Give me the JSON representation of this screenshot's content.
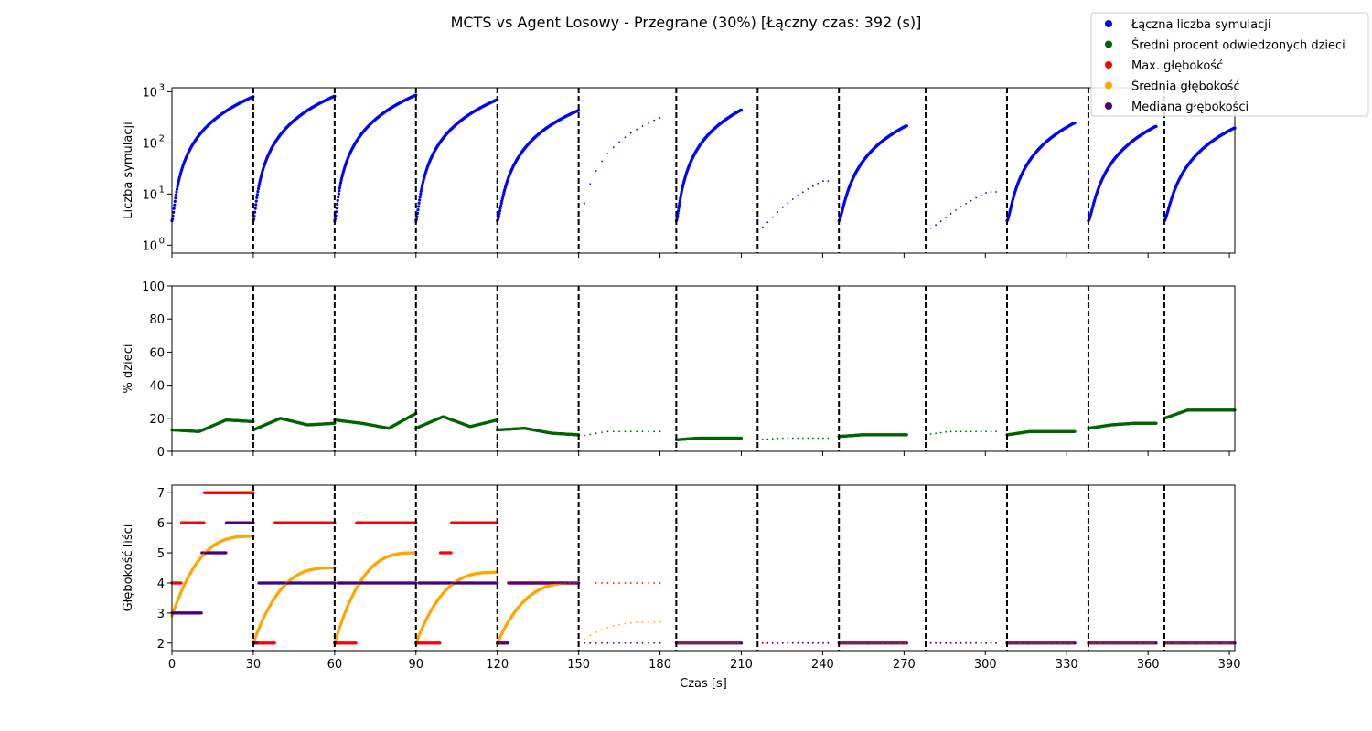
{
  "chart_data": {
    "type": "scatter",
    "title": "MCTS vs Agent Losowy - Przegrane (30%) [Łączny czas: 392 (s)]",
    "xlabel": "Czas [s]",
    "xlim": [
      0,
      392
    ],
    "xticks": [
      0,
      30,
      60,
      90,
      120,
      150,
      180,
      210,
      240,
      270,
      300,
      330,
      360,
      390
    ],
    "xticklabels": [
      "0",
      "30",
      "60",
      "90",
      "120",
      "150",
      "180",
      "210",
      "240",
      "270",
      "300",
      "330",
      "360",
      "390"
    ],
    "move_boundaries": [
      30,
      60,
      90,
      120,
      150,
      186,
      216,
      246,
      278,
      308,
      338,
      366
    ],
    "segments": [
      {
        "start": 0,
        "end": 30,
        "dense": true,
        "sim_end": 800,
        "child_pct": [
          13,
          12,
          19,
          18
        ],
        "max_depth_steps": [
          [
            0,
            4
          ],
          [
            3.5,
            6
          ],
          [
            12,
            7
          ]
        ],
        "avg_depth": [
          2.9,
          5.55
        ],
        "median_depth_steps": [
          [
            0,
            3
          ],
          [
            11,
            5
          ],
          [
            20,
            6
          ]
        ]
      },
      {
        "start": 30,
        "end": 60,
        "dense": true,
        "sim_end": 820,
        "child_pct": [
          13,
          20,
          16,
          17
        ],
        "max_depth_steps": [
          [
            30,
            2
          ],
          [
            38,
            6
          ]
        ],
        "avg_depth": [
          2.0,
          4.5
        ],
        "median_depth_steps": [
          [
            30,
            2
          ],
          [
            32,
            4
          ]
        ]
      },
      {
        "start": 60,
        "end": 90,
        "dense": true,
        "sim_end": 860,
        "child_pct": [
          19,
          17,
          14,
          23
        ],
        "max_depth_steps": [
          [
            60,
            2
          ],
          [
            68,
            6
          ]
        ],
        "avg_depth": [
          2.0,
          5.0
        ],
        "median_depth_steps": [
          [
            60,
            2
          ],
          [
            61,
            4
          ]
        ]
      },
      {
        "start": 90,
        "end": 120,
        "dense": true,
        "sim_end": 700,
        "child_pct": [
          14,
          21,
          15,
          19
        ],
        "max_depth_steps": [
          [
            90,
            2
          ],
          [
            99,
            5
          ],
          [
            103,
            6
          ]
        ],
        "avg_depth": [
          2.0,
          4.35
        ],
        "median_depth_steps": [
          [
            90,
            2
          ],
          [
            91,
            4
          ]
        ]
      },
      {
        "start": 120,
        "end": 150,
        "dense": true,
        "sim_end": 430,
        "child_pct": [
          13,
          14,
          11,
          10
        ],
        "max_depth_steps": [
          [
            120,
            2
          ],
          [
            124,
            4
          ]
        ],
        "avg_depth": [
          2.0,
          4.0
        ],
        "median_depth_steps": [
          [
            120,
            2
          ],
          [
            124,
            4
          ]
        ]
      },
      {
        "start": 150,
        "end": 180,
        "dense": false,
        "sim_end": 310,
        "child_pct": [
          9,
          12,
          12,
          12
        ],
        "max_depth_steps": [
          [
            150,
            2
          ],
          [
            155,
            4
          ]
        ],
        "avg_depth": [
          2.0,
          2.7
        ],
        "median_depth_steps": [
          [
            150,
            2
          ]
        ]
      },
      {
        "start": 186,
        "end": 210,
        "dense": true,
        "sim_end": 440,
        "child_pct": [
          7,
          8,
          8,
          8
        ],
        "max_depth_steps": [
          [
            186,
            2
          ]
        ],
        "avg_depth": [
          2.0,
          2.0
        ],
        "median_depth_steps": [
          [
            186,
            2
          ]
        ]
      },
      {
        "start": 216,
        "end": 242,
        "dense": false,
        "sim_end": 18,
        "child_pct": [
          7,
          8,
          8,
          8
        ],
        "max_depth_steps": [
          [
            216,
            2
          ]
        ],
        "avg_depth": [
          2.0,
          2.0
        ],
        "median_depth_steps": [
          [
            216,
            2
          ]
        ]
      },
      {
        "start": 246,
        "end": 271,
        "dense": true,
        "sim_end": 215,
        "child_pct": [
          9,
          10,
          10,
          10
        ],
        "max_depth_steps": [
          [
            246,
            2
          ]
        ],
        "avg_depth": [
          2.0,
          2.0
        ],
        "median_depth_steps": [
          [
            246,
            2
          ]
        ]
      },
      {
        "start": 278,
        "end": 304,
        "dense": false,
        "sim_end": 11,
        "child_pct": [
          10,
          12,
          12,
          12
        ],
        "max_depth_steps": [
          [
            278,
            2
          ]
        ],
        "avg_depth": [
          2.0,
          2.0
        ],
        "median_depth_steps": [
          [
            278,
            2
          ]
        ]
      },
      {
        "start": 308,
        "end": 333,
        "dense": true,
        "sim_end": 245,
        "child_pct": [
          10,
          12,
          12,
          12
        ],
        "max_depth_steps": [
          [
            308,
            2
          ]
        ],
        "avg_depth": [
          2.0,
          2.0
        ],
        "median_depth_steps": [
          [
            308,
            2
          ]
        ]
      },
      {
        "start": 338,
        "end": 363,
        "dense": true,
        "sim_end": 210,
        "child_pct": [
          14,
          16,
          17,
          17
        ],
        "max_depth_steps": [
          [
            338,
            2
          ]
        ],
        "avg_depth": [
          2.0,
          2.0
        ],
        "median_depth_steps": [
          [
            338,
            2
          ]
        ]
      },
      {
        "start": 366,
        "end": 392,
        "dense": true,
        "sim_end": 195,
        "child_pct": [
          20,
          25,
          25,
          25
        ],
        "max_depth_steps": [
          [
            366,
            2
          ]
        ],
        "avg_depth": [
          2.0,
          2.0
        ],
        "median_depth_steps": [
          [
            366,
            2
          ]
        ]
      }
    ],
    "panels": [
      {
        "id": "sims",
        "ylabel": "Liczba symulacji",
        "yscale": "log",
        "ylim": [
          0.7,
          1200
        ],
        "yticks": [
          1,
          10,
          100,
          1000
        ],
        "yticklabels": [
          "10",
          "10",
          "10",
          "10"
        ],
        "yticklabel_exponents": [
          "0",
          "1",
          "2",
          "3"
        ]
      },
      {
        "id": "children",
        "ylabel": "% dzieci",
        "yscale": "linear",
        "ylim": [
          0,
          100
        ],
        "yticks": [
          0,
          20,
          40,
          60,
          80,
          100
        ],
        "yticklabels": [
          "0",
          "20",
          "40",
          "60",
          "80",
          "100"
        ]
      },
      {
        "id": "depth",
        "ylabel": "Głębokość liści",
        "yscale": "linear",
        "ylim": [
          1.75,
          7.25
        ],
        "yticks": [
          2,
          3,
          4,
          5,
          6,
          7
        ],
        "yticklabels": [
          "2",
          "3",
          "4",
          "5",
          "6",
          "7"
        ]
      }
    ],
    "series": [
      {
        "name": "Łączna liczba symulacji",
        "color": "#0000ff",
        "panel": "sims"
      },
      {
        "name": "Średni procent odwiedzonych dzieci",
        "color": "#006400",
        "panel": "children"
      },
      {
        "name": "Max. głębokość",
        "color": "#ff0000",
        "panel": "depth"
      },
      {
        "name": "Średnia głębokość",
        "color": "#ffa500",
        "panel": "depth"
      },
      {
        "name": "Mediana głębokości",
        "color": "#4b0082",
        "panel": "depth"
      }
    ],
    "legend_position": "top-right"
  }
}
